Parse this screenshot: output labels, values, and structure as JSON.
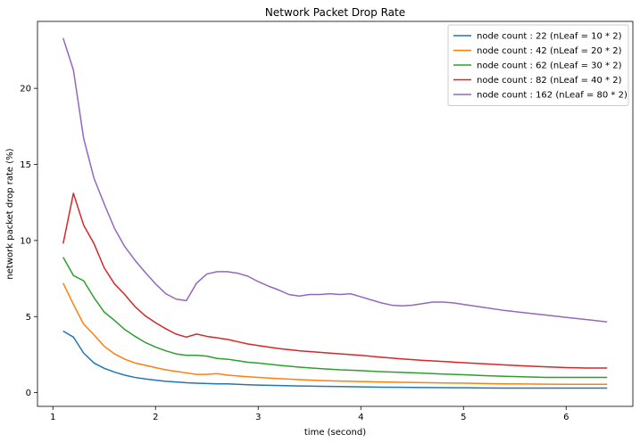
{
  "chart_data": {
    "type": "line",
    "title": "Network Packet Drop Rate",
    "xlabel": "time (second)",
    "ylabel": "network packet drop rate (%)",
    "xlim": [
      0.85,
      6.65
    ],
    "ylim": [
      -0.9,
      24.4
    ],
    "xticks": [
      1,
      2,
      3,
      4,
      5,
      6
    ],
    "yticks": [
      0,
      5,
      10,
      15,
      20
    ],
    "grid": false,
    "legend_position": "upper right",
    "series": [
      {
        "name": "node count : 22 (nLeaf = 10 * 2)",
        "color": "#1f77b4",
        "x": [
          1.1,
          1.2,
          1.3,
          1.4,
          1.5,
          1.6,
          1.7,
          1.8,
          1.9,
          2.0,
          2.1,
          2.2,
          2.3,
          2.4,
          2.5,
          2.6,
          2.7,
          2.8,
          2.9,
          3.0,
          3.2,
          3.4,
          3.6,
          3.8,
          4.0,
          4.2,
          4.4,
          4.6,
          4.8,
          5.0,
          5.2,
          5.4,
          5.6,
          5.8,
          6.0,
          6.2,
          6.4
        ],
        "y": [
          4.05,
          3.65,
          2.6,
          1.95,
          1.6,
          1.35,
          1.15,
          1.0,
          0.9,
          0.82,
          0.75,
          0.7,
          0.65,
          0.62,
          0.6,
          0.58,
          0.58,
          0.55,
          0.52,
          0.5,
          0.47,
          0.44,
          0.42,
          0.4,
          0.38,
          0.36,
          0.35,
          0.34,
          0.33,
          0.32,
          0.31,
          0.3,
          0.3,
          0.3,
          0.3,
          0.3,
          0.3
        ]
      },
      {
        "name": "node count : 42 (nLeaf = 20 * 2)",
        "color": "#ff7f0e",
        "x": [
          1.1,
          1.2,
          1.3,
          1.4,
          1.5,
          1.6,
          1.7,
          1.8,
          1.9,
          2.0,
          2.1,
          2.2,
          2.3,
          2.4,
          2.5,
          2.6,
          2.7,
          2.8,
          2.9,
          3.0,
          3.2,
          3.4,
          3.6,
          3.8,
          4.0,
          4.2,
          4.4,
          4.6,
          4.8,
          5.0,
          5.2,
          5.4,
          5.6,
          5.8,
          6.0,
          6.2,
          6.4
        ],
        "y": [
          7.2,
          5.8,
          4.5,
          3.8,
          3.05,
          2.55,
          2.2,
          1.95,
          1.8,
          1.65,
          1.5,
          1.4,
          1.3,
          1.2,
          1.2,
          1.25,
          1.15,
          1.1,
          1.05,
          1.0,
          0.92,
          0.86,
          0.8,
          0.76,
          0.73,
          0.7,
          0.68,
          0.66,
          0.64,
          0.62,
          0.6,
          0.58,
          0.57,
          0.56,
          0.55,
          0.55,
          0.55
        ]
      },
      {
        "name": "node count : 62 (nLeaf = 30 * 2)",
        "color": "#2ca02c",
        "x": [
          1.1,
          1.2,
          1.3,
          1.4,
          1.5,
          1.6,
          1.7,
          1.8,
          1.9,
          2.0,
          2.1,
          2.2,
          2.3,
          2.4,
          2.5,
          2.6,
          2.7,
          2.8,
          2.9,
          3.0,
          3.2,
          3.4,
          3.6,
          3.8,
          4.0,
          4.2,
          4.4,
          4.6,
          4.8,
          5.0,
          5.2,
          5.4,
          5.6,
          5.8,
          6.0,
          6.2,
          6.4
        ],
        "y": [
          8.9,
          7.7,
          7.35,
          6.25,
          5.3,
          4.75,
          4.15,
          3.7,
          3.3,
          3.0,
          2.75,
          2.55,
          2.45,
          2.45,
          2.4,
          2.25,
          2.2,
          2.1,
          2.0,
          1.95,
          1.8,
          1.68,
          1.58,
          1.5,
          1.45,
          1.38,
          1.33,
          1.28,
          1.22,
          1.18,
          1.12,
          1.08,
          1.04,
          1.0,
          1.0,
          1.0,
          1.0
        ]
      },
      {
        "name": "node count : 82 (nLeaf = 40 * 2)",
        "color": "#d62728",
        "x": [
          1.1,
          1.2,
          1.3,
          1.4,
          1.5,
          1.6,
          1.7,
          1.8,
          1.9,
          2.0,
          2.1,
          2.2,
          2.3,
          2.4,
          2.5,
          2.6,
          2.7,
          2.8,
          2.9,
          3.0,
          3.2,
          3.4,
          3.6,
          3.8,
          4.0,
          4.2,
          4.4,
          4.6,
          4.8,
          5.0,
          5.2,
          5.4,
          5.6,
          5.8,
          6.0,
          6.2,
          6.4
        ],
        "y": [
          9.8,
          13.1,
          11.0,
          9.8,
          8.2,
          7.15,
          6.45,
          5.65,
          5.05,
          4.6,
          4.2,
          3.85,
          3.65,
          3.85,
          3.7,
          3.6,
          3.5,
          3.35,
          3.2,
          3.1,
          2.9,
          2.75,
          2.65,
          2.55,
          2.45,
          2.33,
          2.22,
          2.12,
          2.05,
          1.97,
          1.9,
          1.82,
          1.76,
          1.7,
          1.65,
          1.62,
          1.62
        ]
      },
      {
        "name": "node count : 162 (nLeaf = 80 * 2)",
        "color": "#9467bd",
        "x": [
          1.1,
          1.2,
          1.3,
          1.4,
          1.5,
          1.6,
          1.7,
          1.8,
          1.9,
          2.0,
          2.1,
          2.2,
          2.3,
          2.4,
          2.5,
          2.6,
          2.7,
          2.8,
          2.9,
          3.0,
          3.1,
          3.2,
          3.3,
          3.4,
          3.5,
          3.6,
          3.7,
          3.8,
          3.9,
          4.0,
          4.1,
          4.2,
          4.3,
          4.4,
          4.5,
          4.6,
          4.7,
          4.8,
          4.9,
          5.0,
          5.2,
          5.4,
          5.6,
          5.8,
          6.0,
          6.2,
          6.4
        ],
        "y": [
          23.3,
          21.2,
          16.7,
          14.1,
          12.4,
          10.8,
          9.6,
          8.7,
          7.9,
          7.15,
          6.5,
          6.15,
          6.05,
          7.2,
          7.8,
          7.95,
          7.95,
          7.85,
          7.65,
          7.3,
          7.0,
          6.75,
          6.45,
          6.35,
          6.45,
          6.45,
          6.5,
          6.45,
          6.5,
          6.3,
          6.1,
          5.9,
          5.75,
          5.7,
          5.75,
          5.85,
          5.95,
          5.95,
          5.9,
          5.8,
          5.6,
          5.4,
          5.25,
          5.1,
          4.95,
          4.8,
          4.65
        ]
      }
    ]
  }
}
